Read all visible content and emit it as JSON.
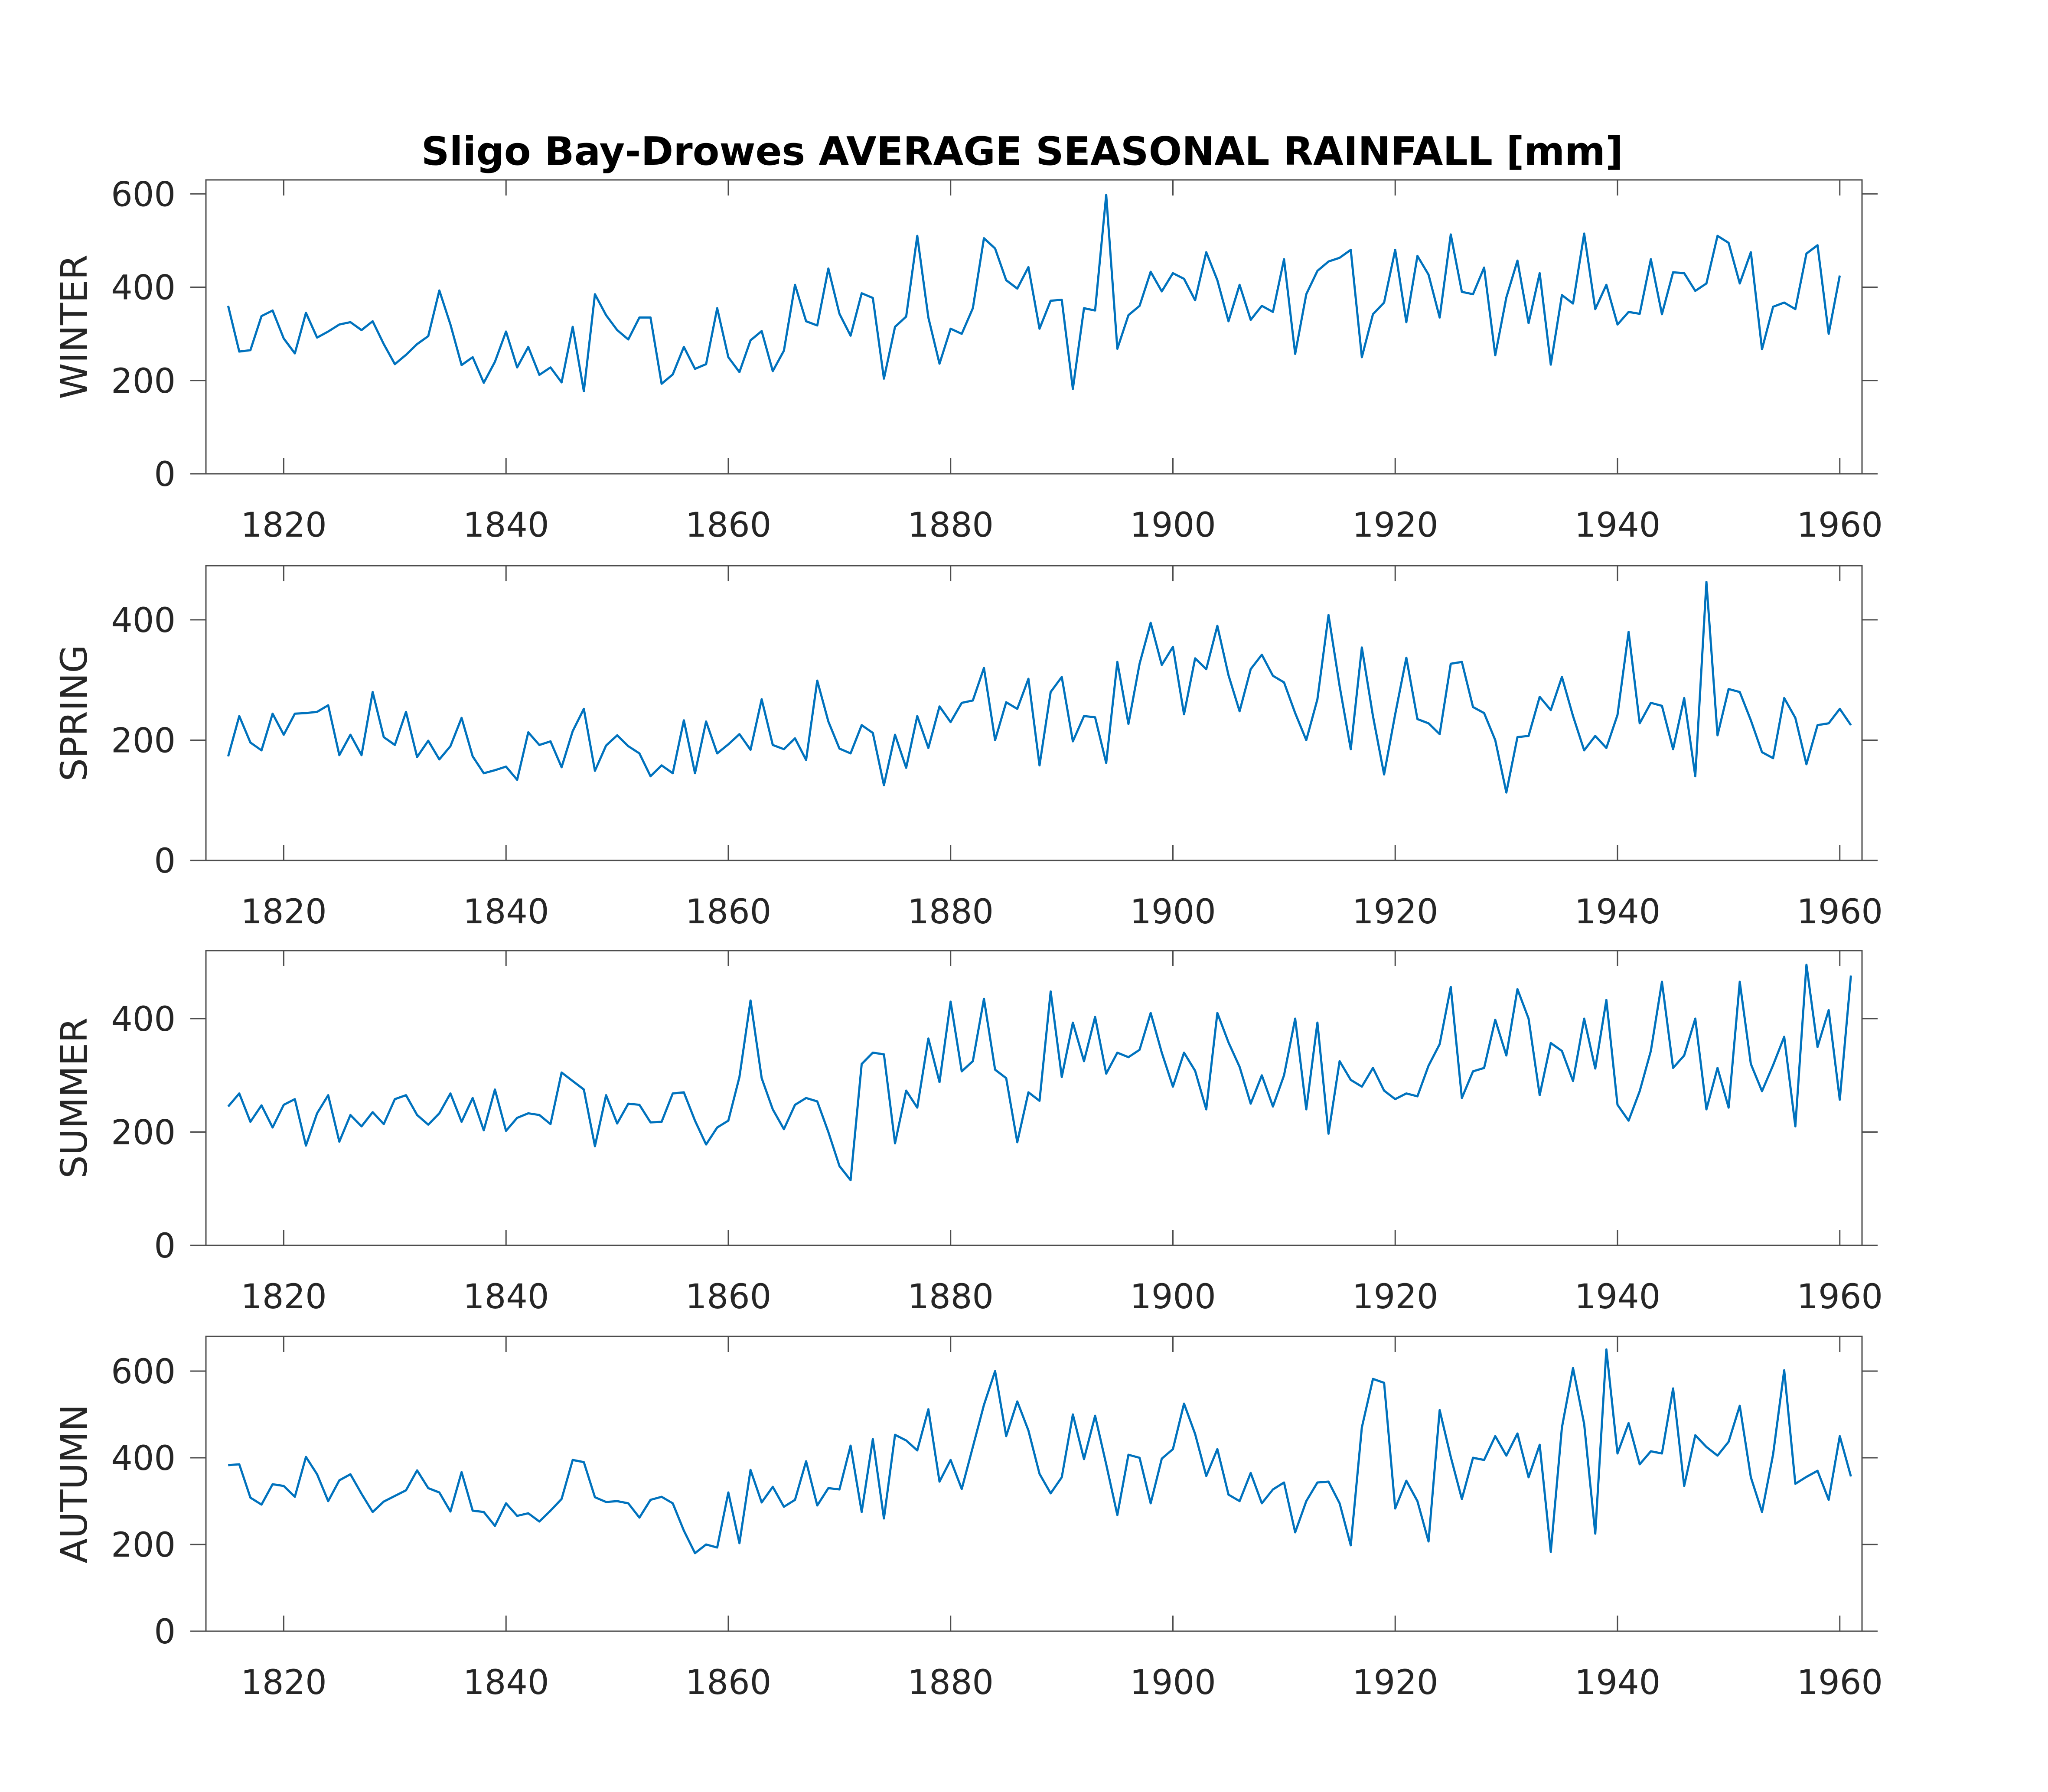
{
  "colors": {
    "series": "#0072bd"
  },
  "chart_data": {
    "type": "line",
    "title": "Sligo Bay-Drowes AVERAGE SEASONAL RAINFALL [mm]",
    "xlabel": "",
    "x_start_year": 1815,
    "xlim": [
      1813,
      1962
    ],
    "xticks": [
      1820,
      1840,
      1860,
      1880,
      1900,
      1920,
      1940,
      1960
    ],
    "grid": false,
    "panels": [
      {
        "ylabel": "WINTER",
        "ylim": [
          0,
          630
        ],
        "yticks": [
          0,
          200,
          400,
          600
        ],
        "values": [
          360,
          262,
          265,
          338,
          350,
          290,
          258,
          345,
          292,
          305,
          320,
          325,
          308,
          327,
          278,
          235,
          255,
          278,
          295,
          393,
          320,
          233,
          250,
          195,
          240,
          305,
          228,
          272,
          212,
          228,
          196,
          315,
          177,
          385,
          340,
          308,
          288,
          335,
          335,
          193,
          213,
          272,
          225,
          235,
          355,
          250,
          218,
          286,
          306,
          220,
          264,
          405,
          327,
          318,
          440,
          343,
          296,
          387,
          377,
          204,
          315,
          337,
          510,
          335,
          236,
          311,
          300,
          355,
          505,
          483,
          415,
          397,
          443,
          311,
          371,
          373,
          182,
          355,
          350,
          598,
          268,
          340,
          360,
          433,
          391,
          430,
          418,
          372,
          475,
          415,
          327,
          405,
          330,
          360,
          347,
          460,
          257,
          385,
          435,
          455,
          463,
          480,
          250,
          342,
          367,
          480,
          325,
          467,
          427,
          335,
          513,
          390,
          385,
          442,
          254,
          378,
          457,
          323,
          430,
          234,
          383,
          365,
          515,
          353,
          405,
          320,
          347,
          343,
          460,
          342,
          432,
          430,
          392,
          408,
          510,
          495,
          408,
          475,
          267,
          358,
          367,
          353,
          472,
          490,
          300,
          425
        ]
      },
      {
        "ylabel": "SPRING",
        "ylim": [
          0,
          490
        ],
        "yticks": [
          0,
          200,
          400
        ],
        "values": [
          173,
          240,
          196,
          183,
          244,
          209,
          244,
          245,
          247,
          258,
          175,
          209,
          175,
          280,
          205,
          192,
          247,
          172,
          199,
          168,
          190,
          237,
          173,
          145,
          150,
          156,
          134,
          213,
          192,
          198,
          155,
          215,
          252,
          149,
          191,
          208,
          190,
          178,
          140,
          158,
          145,
          233,
          145,
          231,
          178,
          193,
          210,
          184,
          268,
          192,
          185,
          203,
          167,
          299,
          231,
          186,
          178,
          225,
          212,
          125,
          209,
          154,
          240,
          187,
          256,
          230,
          262,
          266,
          320,
          200,
          263,
          252,
          302,
          158,
          280,
          305,
          198,
          240,
          238,
          162,
          330,
          227,
          327,
          395,
          325,
          355,
          243,
          336,
          318,
          390,
          308,
          248,
          318,
          342,
          307,
          296,
          245,
          200,
          268,
          408,
          290,
          185,
          354,
          240,
          143,
          243,
          337,
          235,
          228,
          210,
          327,
          330,
          255,
          245,
          200,
          113,
          205,
          207,
          272,
          250,
          305,
          240,
          183,
          207,
          187,
          242,
          380,
          228,
          262,
          257,
          185,
          270,
          140,
          463,
          208,
          285,
          280,
          233,
          180,
          170,
          270,
          237,
          160,
          225,
          228,
          252,
          225
        ]
      },
      {
        "ylabel": "SUMMER",
        "ylim": [
          0,
          520
        ],
        "yticks": [
          0,
          200,
          400
        ],
        "values": [
          245,
          268,
          218,
          247,
          208,
          248,
          258,
          176,
          233,
          265,
          183,
          230,
          210,
          235,
          214,
          258,
          265,
          230,
          213,
          233,
          268,
          218,
          260,
          203,
          275,
          202,
          225,
          233,
          230,
          214,
          305,
          290,
          275,
          175,
          265,
          215,
          250,
          248,
          217,
          218,
          268,
          270,
          220,
          178,
          208,
          220,
          297,
          432,
          295,
          240,
          205,
          248,
          260,
          254,
          200,
          140,
          115,
          320,
          340,
          337,
          180,
          273,
          243,
          365,
          288,
          430,
          307,
          325,
          435,
          310,
          295,
          182,
          270,
          255,
          448,
          297,
          393,
          325,
          403,
          303,
          340,
          332,
          345,
          410,
          340,
          280,
          340,
          308,
          240,
          410,
          358,
          315,
          250,
          300,
          245,
          300,
          400,
          240,
          393,
          197,
          325,
          292,
          280,
          313,
          273,
          258,
          268,
          263,
          317,
          355,
          456,
          260,
          307,
          313,
          398,
          335,
          452,
          400,
          265,
          357,
          343,
          290,
          400,
          312,
          433,
          248,
          220,
          272,
          343,
          465,
          313,
          335,
          400,
          240,
          313,
          243,
          465,
          320,
          272,
          318,
          368,
          210,
          495,
          350,
          415,
          257,
          476
        ]
      },
      {
        "ylabel": "AUTUMN",
        "ylim": [
          0,
          680
        ],
        "yticks": [
          0,
          200,
          400,
          600
        ],
        "values": [
          383,
          385,
          308,
          292,
          339,
          335,
          310,
          402,
          362,
          300,
          348,
          362,
          317,
          275,
          299,
          312,
          325,
          371,
          330,
          320,
          276,
          367,
          278,
          275,
          243,
          295,
          266,
          272,
          253,
          278,
          305,
          395,
          390,
          309,
          298,
          300,
          295,
          262,
          303,
          310,
          295,
          232,
          180,
          200,
          193,
          320,
          203,
          372,
          297,
          333,
          287,
          303,
          392,
          290,
          330,
          327,
          428,
          275,
          443,
          260,
          453,
          440,
          417,
          512,
          345,
          395,
          328,
          425,
          522,
          600,
          450,
          530,
          463,
          363,
          318,
          355,
          500,
          397,
          497,
          385,
          268,
          407,
          400,
          295,
          398,
          420,
          525,
          455,
          358,
          420,
          315,
          300,
          365,
          295,
          327,
          343,
          228,
          300,
          343,
          345,
          295,
          198,
          470,
          582,
          573,
          283,
          347,
          300,
          207,
          510,
          402,
          305,
          400,
          395,
          450,
          405,
          456,
          355,
          430,
          183,
          470,
          607,
          478,
          225,
          650,
          410,
          480,
          385,
          415,
          410,
          560,
          335,
          452,
          425,
          405,
          437,
          520,
          355,
          275,
          408,
          602,
          340,
          356,
          370,
          303,
          450,
          357
        ]
      }
    ]
  }
}
